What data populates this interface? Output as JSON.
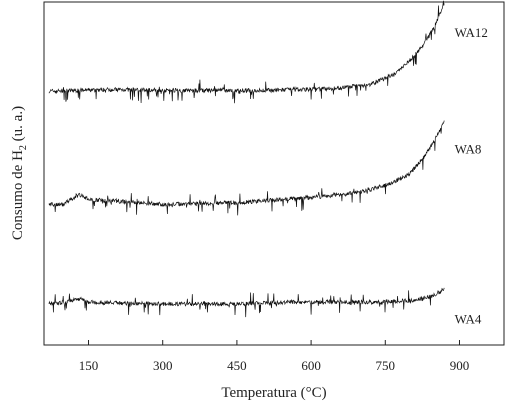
{
  "chart_data": {
    "type": "line",
    "title": "",
    "xlabel": "Temperatura (°C)",
    "ylabel": "Consumo de H",
    "ylabel_subscript": "2",
    "ylabel_suffix": " (u. a.)",
    "xlim": [
      60,
      990
    ],
    "ylim": [
      0,
      1
    ],
    "xticks": [
      150,
      300,
      450,
      600,
      750,
      900
    ],
    "yticks_shown": false,
    "grid": false,
    "legend": "none",
    "series": [
      {
        "name": "WA12",
        "points": [
          [
            70,
            0.74
          ],
          [
            200,
            0.745
          ],
          [
            350,
            0.742
          ],
          [
            500,
            0.742
          ],
          [
            650,
            0.748
          ],
          [
            720,
            0.76
          ],
          [
            770,
            0.79
          ],
          [
            800,
            0.83
          ],
          [
            830,
            0.88
          ],
          [
            850,
            0.93
          ],
          [
            870,
            1.0
          ]
        ]
      },
      {
        "name": "WA8",
        "points": [
          [
            70,
            0.41
          ],
          [
            100,
            0.41
          ],
          [
            130,
            0.44
          ],
          [
            150,
            0.425
          ],
          [
            300,
            0.41
          ],
          [
            450,
            0.415
          ],
          [
            600,
            0.43
          ],
          [
            700,
            0.445
          ],
          [
            760,
            0.47
          ],
          [
            800,
            0.5
          ],
          [
            830,
            0.55
          ],
          [
            855,
            0.61
          ],
          [
            870,
            0.66
          ]
        ]
      },
      {
        "name": "WA4",
        "points": [
          [
            70,
            0.12
          ],
          [
            100,
            0.125
          ],
          [
            130,
            0.135
          ],
          [
            150,
            0.125
          ],
          [
            300,
            0.12
          ],
          [
            450,
            0.12
          ],
          [
            550,
            0.125
          ],
          [
            650,
            0.125
          ],
          [
            750,
            0.125
          ],
          [
            800,
            0.13
          ],
          [
            840,
            0.14
          ],
          [
            860,
            0.155
          ],
          [
            870,
            0.165
          ]
        ]
      }
    ]
  }
}
